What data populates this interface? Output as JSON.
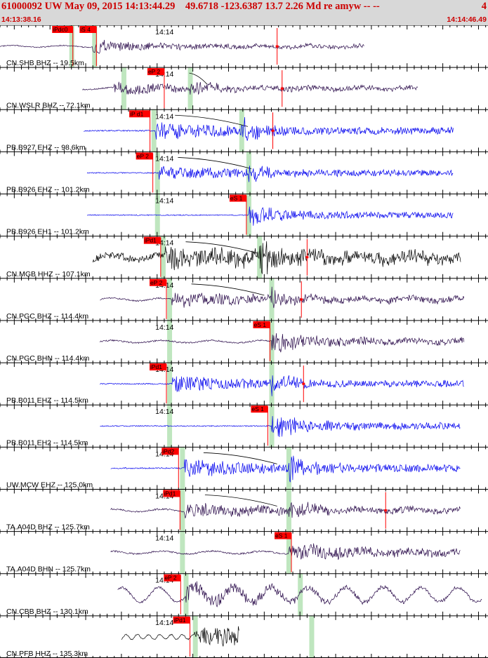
{
  "header": {
    "title": "61000092 UW May 09, 2015 14:13:44.29    49.6718 -123.6387 13.7 2.26 Md re amyw -- --",
    "page_number": "4",
    "start_time": "14:13:38.16",
    "end_time": "14:14:46.49"
  },
  "colors": {
    "header_bg": "#d8d8d8",
    "title_text": "#cc0000",
    "pick_flag": "#ff0000",
    "pick_window": "#bfe6bf",
    "trace_dark": "#2a0b4a",
    "trace_blue": "#0000ee",
    "trace_black": "#000000"
  },
  "chart_data": {
    "type": "line",
    "title": "",
    "xlabel": "",
    "ylabel": "",
    "x_range_sec": [
      0,
      68.33
    ],
    "tick_label": "14:14",
    "tick_label_sec": 21.84,
    "minor_tick_interval_sec": 1,
    "major_tick_interval_sec": 5,
    "series": [
      {
        "name": "CN.SHB BHZ -- 19.5km",
        "color": "#2a0b4a",
        "start": 0.0,
        "end": 51.0,
        "onset": 13.0,
        "amp": 0.3,
        "style": "quiet",
        "picks": [
          {
            "label": "iPdc0",
            "t": 10.2
          },
          {
            "label": "iS 4",
            "t": 13.5
          }
        ],
        "windows": [
          10.0,
          13.2
        ],
        "spikes": [
          38.8
        ],
        "curve": false
      },
      {
        "name": "CN.WSLR BHZ -- 72.1km",
        "color": "#2a0b4a",
        "start": 11.5,
        "end": 58.5,
        "onset": 16.0,
        "amp": 0.35,
        "style": "quiet",
        "picks": [
          {
            "label": "eP 2",
            "t": 23.0
          }
        ],
        "windows": [
          17.3,
          26.6
        ],
        "spikes": [
          39.5
        ],
        "curve": true
      },
      {
        "name": "PB.B927 EHZ -- 98.6km",
        "color": "#0000ee",
        "start": 11.7,
        "end": 63.5,
        "onset": 21.7,
        "amp": 0.55,
        "style": "event",
        "picks": [
          {
            "label": "iP d1",
            "t": 21.0
          }
        ],
        "windows": [
          21.5,
          33.8
        ],
        "spikes": [
          38.2
        ],
        "curve": true
      },
      {
        "name": "PB.B926 EHZ -- 101.2km",
        "color": "#0000ee",
        "start": 12.2,
        "end": 63.5,
        "onset": 22.2,
        "amp": 0.45,
        "style": "event",
        "picks": [
          {
            "label": "eP 2",
            "t": 21.4
          }
        ],
        "windows": [
          22.0,
          34.8
        ],
        "spikes": [],
        "curve": true
      },
      {
        "name": "PB.B926 EH1 -- 101.2km",
        "color": "#0000ee",
        "start": 12.2,
        "end": 63.5,
        "onset": 35.0,
        "amp": 0.4,
        "style": "event",
        "picks": [
          {
            "label": "eS 1",
            "t": 34.5
          }
        ],
        "windows": [
          22.0,
          34.8
        ],
        "spikes": [],
        "curve": false
      },
      {
        "name": "CN.MGB HHZ -- 107.1km",
        "color": "#000000",
        "start": 13.0,
        "end": 64.5,
        "onset": 23.0,
        "amp": 0.7,
        "style": "noisy",
        "picks": [
          {
            "label": "iPd1",
            "t": 22.5
          }
        ],
        "windows": [
          22.8,
          36.3
        ],
        "spikes": [
          43.0
        ],
        "curve": true
      },
      {
        "name": "CN.PGC BHZ -- 114.4km",
        "color": "#2a0b4a",
        "start": 14.0,
        "end": 65.0,
        "onset": 24.0,
        "amp": 0.45,
        "style": "quiet",
        "picks": [
          {
            "label": "eP 2",
            "t": 23.3
          }
        ],
        "windows": [
          23.7,
          38.0
        ],
        "spikes": [
          42.2
        ],
        "curve": true
      },
      {
        "name": "CN.PGC BHN -- 114.4km",
        "color": "#2a0b4a",
        "start": 14.0,
        "end": 65.0,
        "onset": 38.3,
        "amp": 0.4,
        "style": "quiet",
        "picks": [
          {
            "label": "eS 1",
            "t": 37.8
          }
        ],
        "windows": [
          23.7,
          38.0
        ],
        "spikes": [],
        "curve": false
      },
      {
        "name": "PB.B011 EHZ -- 114.5km",
        "color": "#0000ee",
        "start": 14.0,
        "end": 65.0,
        "onset": 24.0,
        "amp": 0.5,
        "style": "event",
        "picks": [
          {
            "label": "iPd1",
            "t": 23.3
          }
        ],
        "windows": [
          23.7,
          38.0
        ],
        "spikes": [
          42.5
        ],
        "curve": false
      },
      {
        "name": "PB.B011 EH2 -- 114.5km",
        "color": "#0000ee",
        "start": 14.0,
        "end": 64.5,
        "onset": 38.3,
        "amp": 0.45,
        "style": "event",
        "picks": [
          {
            "label": "eS 1",
            "t": 37.5
          }
        ],
        "windows": [
          23.7,
          38.0
        ],
        "spikes": [],
        "curve": false
      },
      {
        "name": "UW.MCW EHZ -- 125.0km",
        "color": "#0000ee",
        "start": 15.5,
        "end": 64.5,
        "onset": 25.8,
        "amp": 0.55,
        "style": "event",
        "picks": [
          {
            "label": "iPd2",
            "t": 25.0
          }
        ],
        "windows": [
          25.5,
          40.4
        ],
        "spikes": [],
        "curve": true
      },
      {
        "name": "TA.A04D BHZ -- 125.7km",
        "color": "#2a0b4a",
        "start": 15.5,
        "end": 64.5,
        "onset": 25.8,
        "amp": 0.45,
        "style": "quiet",
        "picks": [
          {
            "label": "iPd1",
            "t": 25.2
          }
        ],
        "windows": [
          25.5,
          40.4
        ],
        "spikes": [
          54.0
        ],
        "curve": true
      },
      {
        "name": "TA.A04D BHN -- 125.7km",
        "color": "#2a0b4a",
        "start": 15.5,
        "end": 64.5,
        "onset": 41.5,
        "amp": 0.45,
        "style": "quiet",
        "picks": [
          {
            "label": "eS 1",
            "t": 40.8
          }
        ],
        "windows": [
          25.5,
          40.4
        ],
        "spikes": [],
        "curve": false
      },
      {
        "name": "CN.CBB BHZ -- 130.1km",
        "color": "#2a0b4a",
        "start": 16.5,
        "end": 67.5,
        "onset": 26.0,
        "amp": 0.55,
        "style": "wave",
        "picks": [
          {
            "label": "eP 2",
            "t": 25.3
          }
        ],
        "windows": [
          26.0,
          42.0
        ],
        "spikes": [],
        "curve": false
      },
      {
        "name": "CN.PFB HHZ -- 135.3km",
        "color": "#000000",
        "start": 17.0,
        "end": 33.5,
        "onset": 27.2,
        "amp": 0.4,
        "style": "wave2",
        "picks": [
          {
            "label": "iPd1",
            "t": 26.6
          }
        ],
        "windows": [
          27.3,
          43.6
        ],
        "spikes": [],
        "curve": false
      }
    ]
  }
}
